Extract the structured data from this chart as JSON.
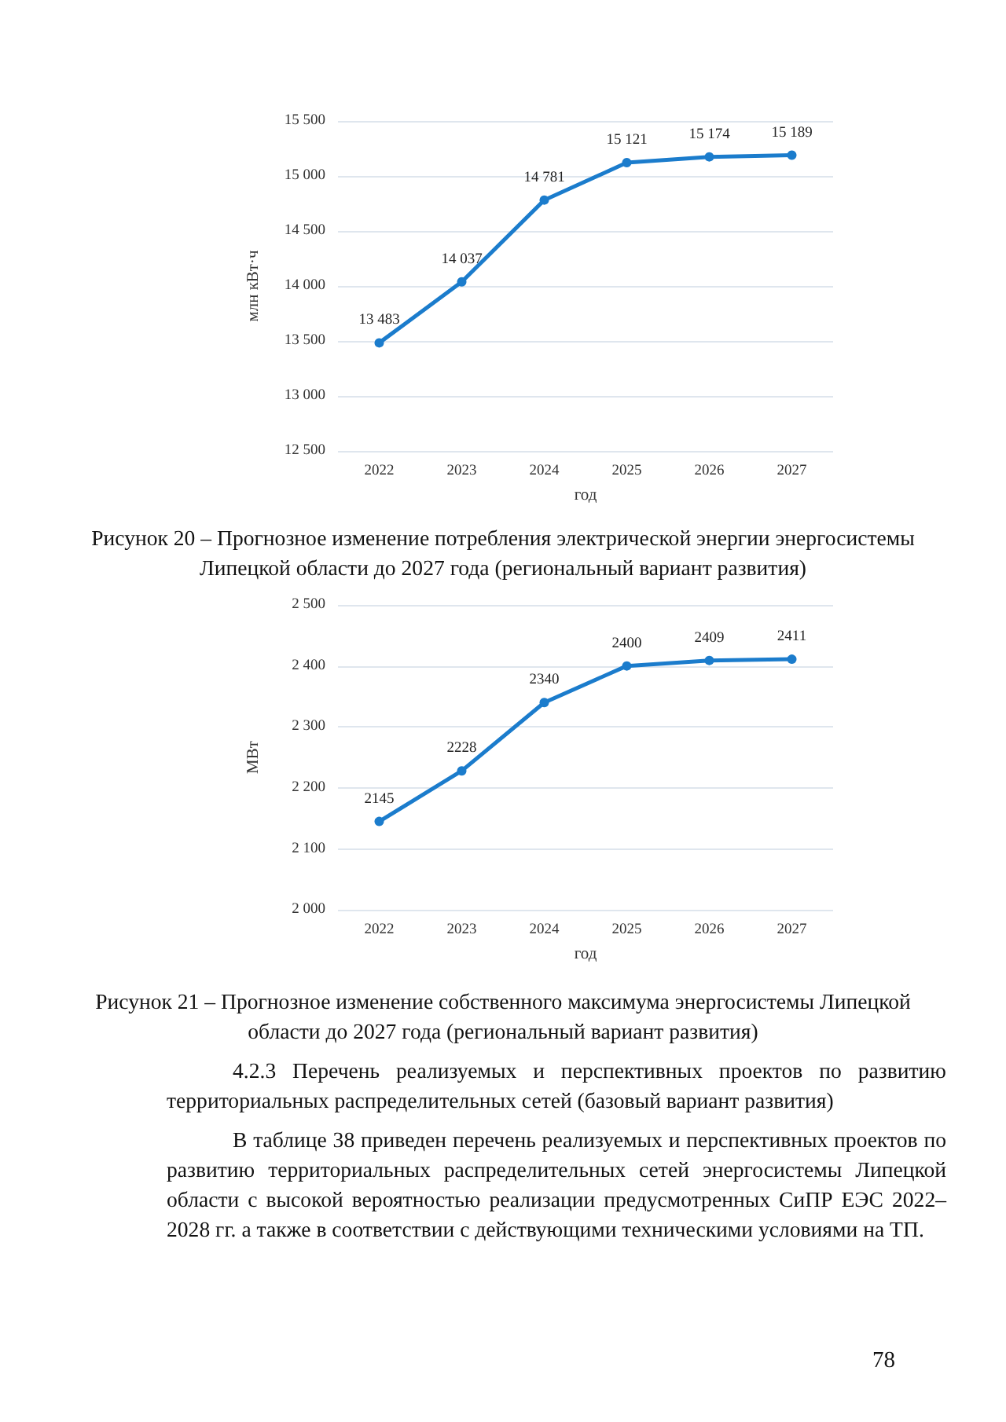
{
  "chart_data": [
    {
      "type": "line",
      "categories": [
        "2022",
        "2023",
        "2024",
        "2025",
        "2026",
        "2027"
      ],
      "xlabel": "год",
      "ylabel": "млн кВт·ч",
      "series": [
        {
          "color": "#1b7ccc",
          "values": [
            13483,
            14037,
            14781,
            15121,
            15174,
            15189
          ],
          "value_labels": [
            "13 483",
            "14 037",
            "14 781",
            "15 121",
            "15 174",
            "15 189"
          ]
        }
      ],
      "ylim": [
        12500,
        15500
      ],
      "yticks": [
        {
          "value": 12500,
          "label": "12 500"
        },
        {
          "value": 13000,
          "label": "13 000"
        },
        {
          "value": 13500,
          "label": "13 500"
        },
        {
          "value": 14000,
          "label": "14 000"
        },
        {
          "value": 14500,
          "label": "14 500"
        },
        {
          "value": 15000,
          "label": "15 000"
        },
        {
          "value": 15500,
          "label": "15 500"
        }
      ],
      "grid": "y",
      "marker": "circle",
      "line_style": "solid",
      "annotations": [
        "Рисунок 20 – Прогнозное изменение потребления электрической энергии энергосистемы Липецкой области до 2027 года (региональный вариант развития)"
      ]
    },
    {
      "type": "line",
      "categories": [
        "2022",
        "2023",
        "2024",
        "2025",
        "2026",
        "2027"
      ],
      "xlabel": "год",
      "ylabel": "МВт",
      "series": [
        {
          "color": "#1b7ccc",
          "values": [
            2145,
            2228,
            2340,
            2400,
            2409,
            2411
          ]
        }
      ],
      "data_labels": true,
      "ylim": [
        2000,
        2500
      ],
      "yticks": [
        {
          "value": 2000,
          "label": "2 000"
        },
        {
          "value": 2100,
          "label": "2 100"
        },
        {
          "value": 2200,
          "label": "2 200"
        },
        {
          "value": 2300,
          "label": "2 300"
        },
        {
          "value": 2400,
          "label": "2 400"
        },
        {
          "value": 2500,
          "label": "2 500"
        }
      ],
      "grid": "y",
      "marker": "circle",
      "line_style": "solid",
      "annotations": [
        "Рисунок 21 – Прогнозное изменение собственного максимума энергосистемы Липецкой области до 2027 года (региональный вариант развития)",
        "4.2.3 Перечень реализуемых и перспективных проектов по развитию территориальных распределительных сетей (базовый вариант развития)",
        "В таблице 38 приведен перечень реализуемых и перспективных проектов по развитию территориальных распределительных сетей энергосистемы Липецкой области с высокой вероятностью реализации предусмотренных СиПР ЕЭС 2022–2028 гг. а также в соответствии с действующими техническими условиями на ТП.",
        "78"
      ]
    }
  ]
}
